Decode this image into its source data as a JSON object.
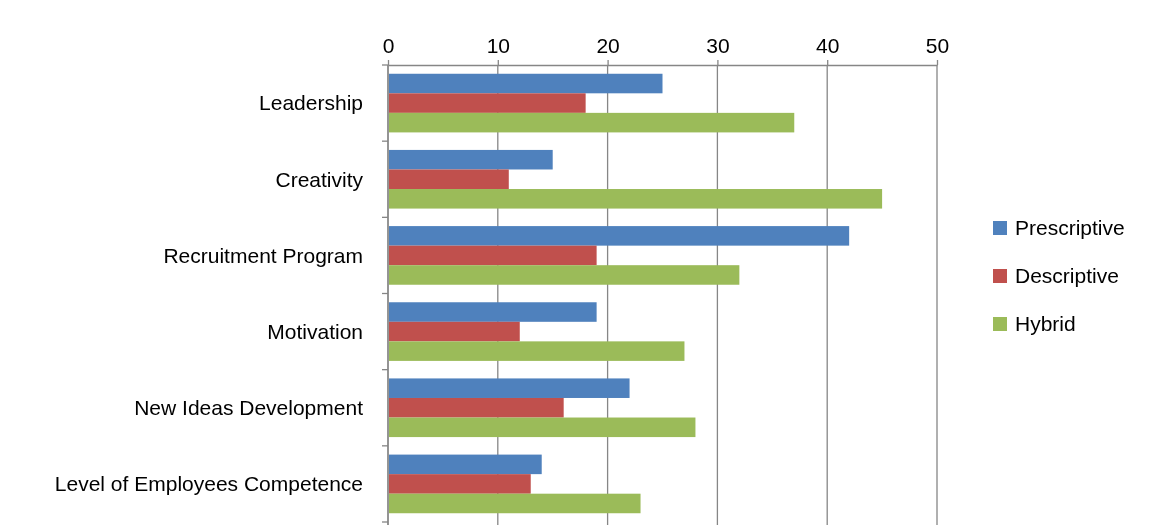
{
  "chart_data": {
    "type": "bar",
    "orientation": "horizontal",
    "categories": [
      "Leadership",
      "Creativity",
      "Recruitment Program",
      "Motivation",
      "New Ideas Development",
      "Level of Employees Competence"
    ],
    "series": [
      {
        "name": "Prescriptive",
        "color": "#4f81bd",
        "values": [
          25,
          15,
          42,
          19,
          22,
          14
        ]
      },
      {
        "name": "Descriptive",
        "color": "#c0504d",
        "values": [
          18,
          11,
          19,
          12,
          16,
          13
        ]
      },
      {
        "name": "Hybrid",
        "color": "#9bbb59",
        "values": [
          37,
          45,
          32,
          27,
          28,
          23
        ]
      }
    ],
    "xlim": [
      0,
      50
    ],
    "xticks": [
      0,
      10,
      20,
      30,
      40,
      50
    ],
    "grid": "x",
    "legend": "right"
  }
}
